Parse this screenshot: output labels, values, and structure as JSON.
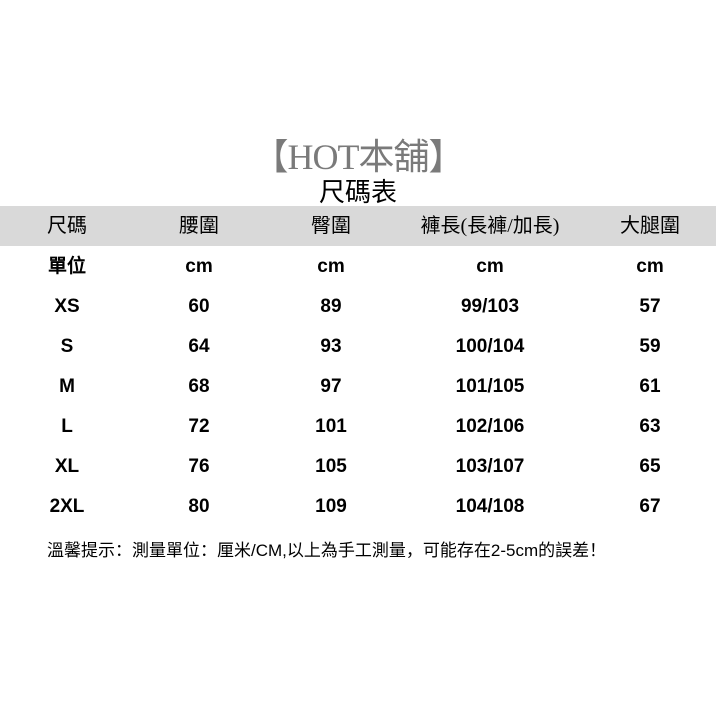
{
  "title": "【HOT本舖】",
  "subtitle": "尺碼表",
  "colors": {
    "header_bg": "#d9d9d9",
    "title": "#7a7a7a"
  },
  "table": {
    "headers": [
      "尺碼",
      "腰圍",
      "臀圍",
      "褲長(長褲/加長)",
      "大腿圍"
    ],
    "rows": [
      [
        "單位",
        "cm",
        "cm",
        "cm",
        "cm"
      ],
      [
        "XS",
        "60",
        "89",
        "99/103",
        "57"
      ],
      [
        "S",
        "64",
        "93",
        "100/104",
        "59"
      ],
      [
        "M",
        "68",
        "97",
        "101/105",
        "61"
      ],
      [
        "L",
        "72",
        "101",
        "102/106",
        "63"
      ],
      [
        "XL",
        "76",
        "105",
        "103/107",
        "65"
      ],
      [
        "2XL",
        "80",
        "109",
        "104/108",
        "67"
      ]
    ]
  },
  "note": "溫馨提示：測量單位：厘米/CM,以上為手工測量，可能存在2-5cm的誤差！"
}
